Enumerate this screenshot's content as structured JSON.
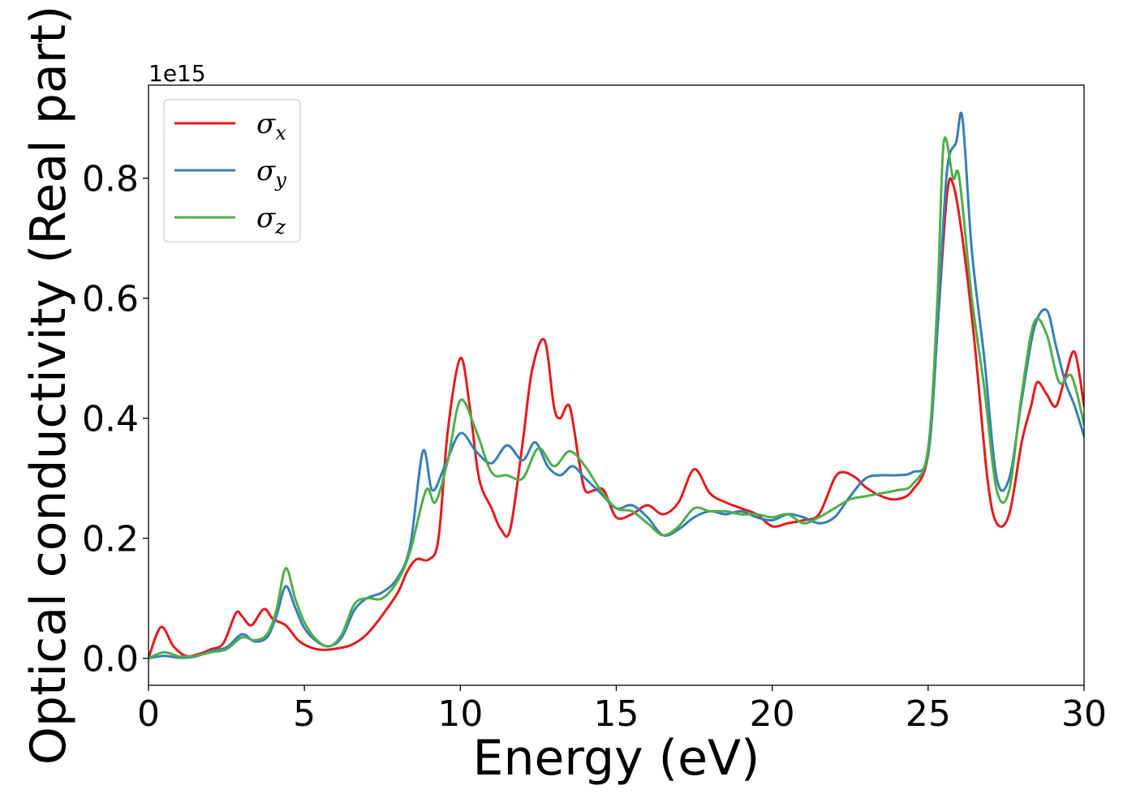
{
  "chart_data": {
    "type": "line",
    "xlabel": "Energy (eV)",
    "ylabel": "Optical conductivity (Real part)",
    "y_offset_text": "1e15",
    "xlim": [
      0,
      30
    ],
    "ylim": [
      -0.045,
      0.955
    ],
    "x_ticks": [
      0,
      5,
      10,
      15,
      20,
      25,
      30
    ],
    "x_tick_labels": [
      "0",
      "5",
      "10",
      "15",
      "20",
      "25",
      "30"
    ],
    "y_ticks": [
      0.0,
      0.2,
      0.4,
      0.6,
      0.8
    ],
    "y_tick_labels": [
      "0.0",
      "0.2",
      "0.4",
      "0.6",
      "0.8"
    ],
    "grid": false,
    "legend_position": "top-left",
    "series": [
      {
        "name": "σx",
        "symbol": "σ",
        "subscript": "x",
        "color": "#e41a1c",
        "x": [
          0,
          0.4,
          0.8,
          1.2,
          1.6,
          2.0,
          2.4,
          2.8,
          3.0,
          3.3,
          3.7,
          4.0,
          4.4,
          4.8,
          5.2,
          5.6,
          6.0,
          6.5,
          7.0,
          7.5,
          8.0,
          8.3,
          8.6,
          9.0,
          9.3,
          9.6,
          10.0,
          10.3,
          10.6,
          11.0,
          11.3,
          11.6,
          12.0,
          12.3,
          12.7,
          13.0,
          13.2,
          13.5,
          13.8,
          14.0,
          14.3,
          14.6,
          15.0,
          15.5,
          16.0,
          16.5,
          17.0,
          17.5,
          18.0,
          18.5,
          19.0,
          19.5,
          20.0,
          20.5,
          21.0,
          21.5,
          22.0,
          22.3,
          22.7,
          23.0,
          23.5,
          24.0,
          24.5,
          25.0,
          25.3,
          25.6,
          25.8,
          26.1,
          26.5,
          26.9,
          27.2,
          27.6,
          28.0,
          28.3,
          28.5,
          28.8,
          29.1,
          29.4,
          29.7,
          30.0
        ],
        "values": [
          0.0,
          0.052,
          0.02,
          0.004,
          0.007,
          0.015,
          0.025,
          0.075,
          0.07,
          0.055,
          0.082,
          0.065,
          0.055,
          0.03,
          0.018,
          0.014,
          0.016,
          0.022,
          0.04,
          0.072,
          0.11,
          0.145,
          0.165,
          0.165,
          0.2,
          0.38,
          0.5,
          0.42,
          0.3,
          0.25,
          0.215,
          0.215,
          0.36,
          0.48,
          0.53,
          0.42,
          0.4,
          0.42,
          0.33,
          0.28,
          0.28,
          0.28,
          0.235,
          0.24,
          0.255,
          0.24,
          0.26,
          0.315,
          0.275,
          0.26,
          0.25,
          0.24,
          0.22,
          0.225,
          0.23,
          0.24,
          0.3,
          0.31,
          0.3,
          0.285,
          0.27,
          0.265,
          0.28,
          0.34,
          0.55,
          0.77,
          0.79,
          0.7,
          0.52,
          0.3,
          0.225,
          0.24,
          0.36,
          0.42,
          0.46,
          0.44,
          0.42,
          0.47,
          0.51,
          0.42
        ]
      },
      {
        "name": "σy",
        "symbol": "σ",
        "subscript": "y",
        "color": "#377eb8",
        "x": [
          0,
          0.5,
          1.0,
          1.5,
          2.0,
          2.5,
          3.0,
          3.4,
          3.8,
          4.1,
          4.4,
          4.7,
          5.0,
          5.4,
          5.8,
          6.2,
          6.6,
          7.0,
          7.5,
          8.0,
          8.4,
          8.8,
          9.1,
          9.5,
          10.0,
          10.5,
          11.0,
          11.5,
          12.0,
          12.4,
          12.8,
          13.2,
          13.6,
          14.0,
          14.5,
          15.0,
          15.5,
          16.0,
          16.5,
          17.0,
          17.5,
          18.0,
          18.5,
          19.0,
          19.5,
          20.0,
          20.5,
          21.0,
          21.5,
          22.0,
          22.5,
          23.0,
          23.5,
          24.0,
          24.5,
          25.0,
          25.3,
          25.6,
          25.9,
          26.1,
          26.4,
          26.8,
          27.2,
          27.6,
          28.0,
          28.4,
          28.8,
          29.1,
          29.4,
          29.7,
          30.0
        ],
        "values": [
          0.0,
          0.004,
          0.001,
          0.003,
          0.012,
          0.018,
          0.04,
          0.028,
          0.035,
          0.07,
          0.12,
          0.085,
          0.05,
          0.028,
          0.02,
          0.035,
          0.08,
          0.1,
          0.11,
          0.135,
          0.19,
          0.345,
          0.28,
          0.32,
          0.375,
          0.345,
          0.325,
          0.355,
          0.33,
          0.36,
          0.32,
          0.305,
          0.32,
          0.3,
          0.275,
          0.25,
          0.255,
          0.235,
          0.205,
          0.215,
          0.235,
          0.245,
          0.24,
          0.245,
          0.235,
          0.23,
          0.24,
          0.235,
          0.225,
          0.235,
          0.27,
          0.3,
          0.305,
          0.305,
          0.31,
          0.34,
          0.55,
          0.81,
          0.86,
          0.9,
          0.68,
          0.5,
          0.3,
          0.3,
          0.43,
          0.55,
          0.58,
          0.52,
          0.46,
          0.42,
          0.37
        ]
      },
      {
        "name": "σz",
        "symbol": "σ",
        "subscript": "z",
        "color": "#4daf4a",
        "x": [
          0,
          0.5,
          1.0,
          1.5,
          2.0,
          2.5,
          3.0,
          3.4,
          3.8,
          4.1,
          4.4,
          4.7,
          5.0,
          5.4,
          5.8,
          6.2,
          6.6,
          7.0,
          7.5,
          8.0,
          8.4,
          8.9,
          9.2,
          9.6,
          10.0,
          10.5,
          11.0,
          11.5,
          12.0,
          12.5,
          13.0,
          13.5,
          14.0,
          14.5,
          15.0,
          15.5,
          16.0,
          16.5,
          17.0,
          17.5,
          18.0,
          18.5,
          19.0,
          19.5,
          20.0,
          20.5,
          21.0,
          21.5,
          22.0,
          22.5,
          23.0,
          23.5,
          24.0,
          24.5,
          25.0,
          25.3,
          25.5,
          25.8,
          26.0,
          26.4,
          26.8,
          27.2,
          27.6,
          28.0,
          28.4,
          28.8,
          29.2,
          29.6,
          30.0
        ],
        "values": [
          0.0,
          0.01,
          0.003,
          0.004,
          0.01,
          0.015,
          0.035,
          0.03,
          0.04,
          0.08,
          0.15,
          0.1,
          0.06,
          0.03,
          0.02,
          0.04,
          0.09,
          0.1,
          0.1,
          0.13,
          0.18,
          0.28,
          0.26,
          0.33,
          0.43,
          0.38,
          0.31,
          0.305,
          0.3,
          0.35,
          0.32,
          0.345,
          0.32,
          0.28,
          0.25,
          0.245,
          0.225,
          0.205,
          0.22,
          0.25,
          0.245,
          0.245,
          0.24,
          0.24,
          0.235,
          0.24,
          0.225,
          0.235,
          0.25,
          0.265,
          0.27,
          0.275,
          0.28,
          0.29,
          0.35,
          0.6,
          0.86,
          0.8,
          0.8,
          0.6,
          0.45,
          0.28,
          0.28,
          0.44,
          0.56,
          0.54,
          0.46,
          0.47,
          0.39
        ]
      }
    ]
  }
}
